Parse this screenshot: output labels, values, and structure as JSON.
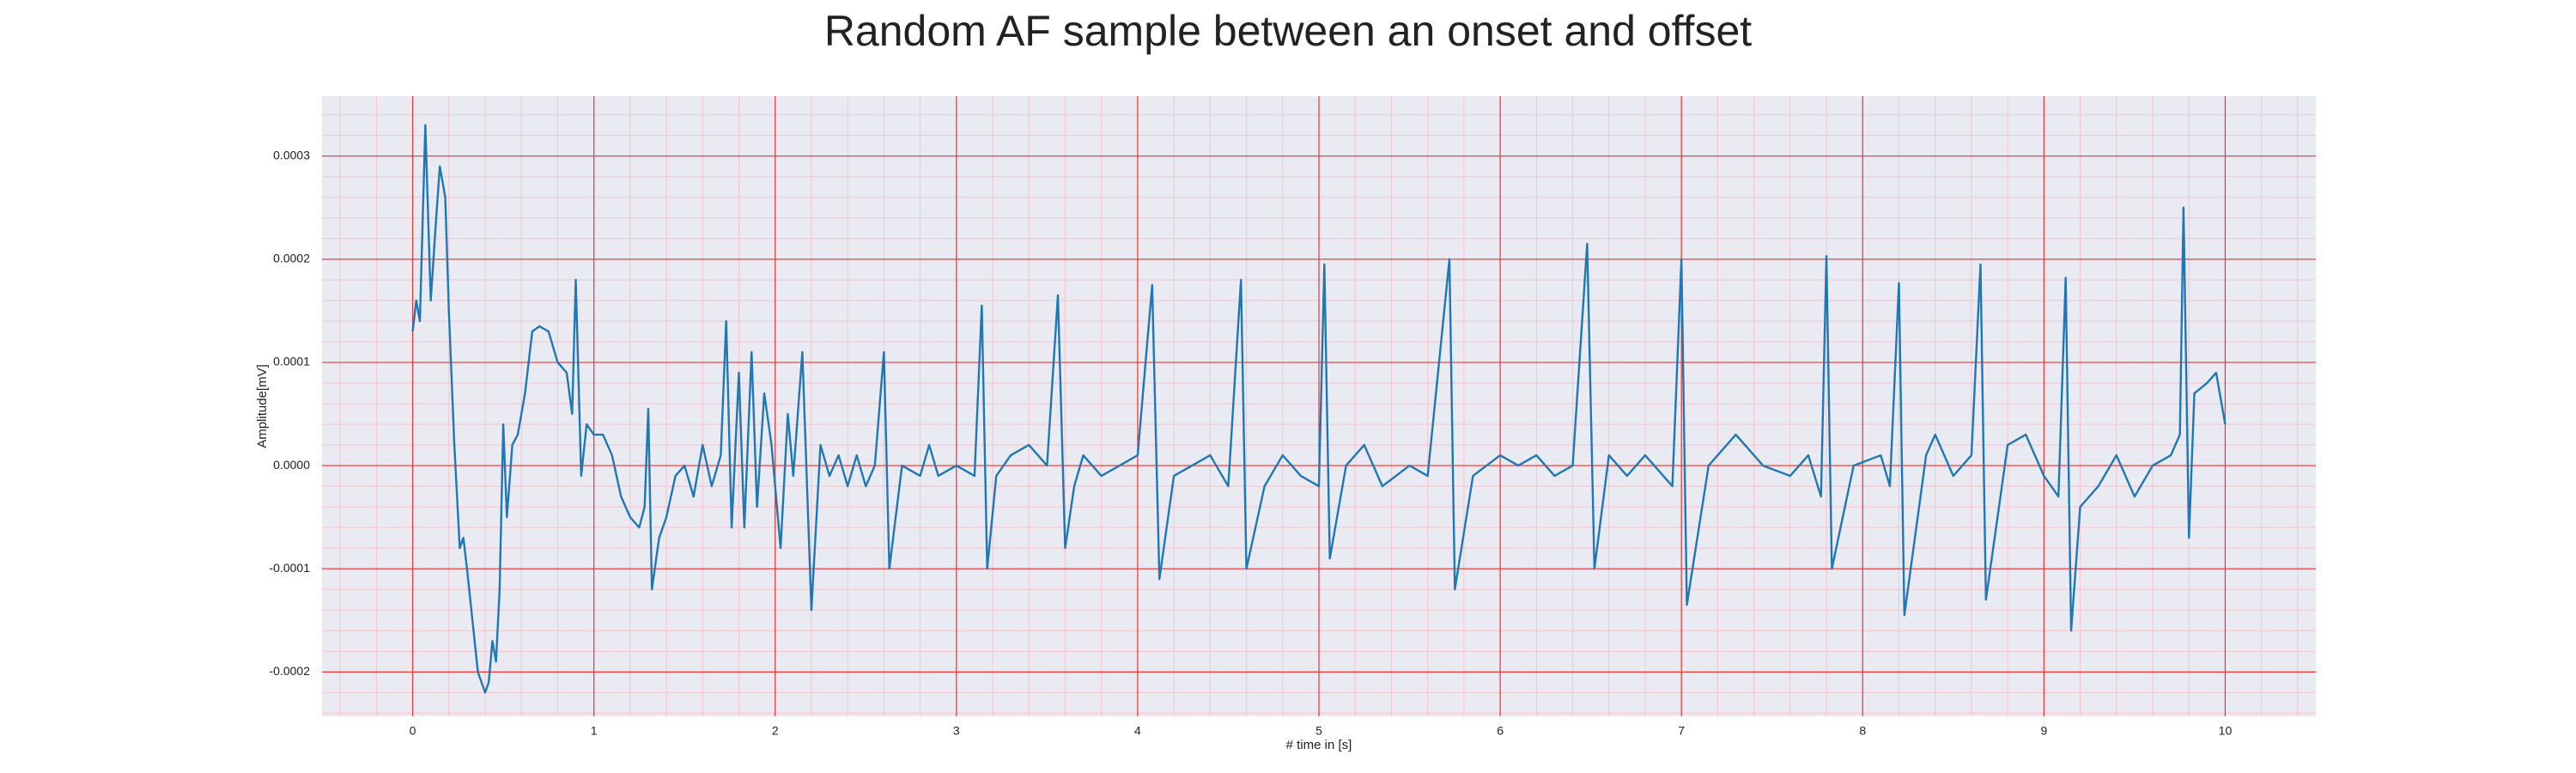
{
  "chart_data": {
    "type": "line",
    "title": "Random AF sample between an onset and offset",
    "xlabel": "# time in [s]",
    "ylabel": "Amplitude[mV]",
    "color": "#1f77b4",
    "background": "#eaeaf2",
    "grid": true,
    "grid_color": "#ee3333",
    "minor_grid": true,
    "minor_grid_color": "#f6c4cc",
    "xlim": [
      -0.5,
      10.5
    ],
    "ylim": [
      -0.000243,
      0.000358
    ],
    "xticks": [
      0,
      1,
      2,
      3,
      4,
      5,
      6,
      7,
      8,
      9,
      10
    ],
    "yticks": [
      {
        "value": -0.0002,
        "label": "-0.0002"
      },
      {
        "value": -0.0001,
        "label": "-0.0001"
      },
      {
        "value": 0,
        "label": "0.0000"
      },
      {
        "value": 0.0001,
        "label": "0.0001"
      },
      {
        "value": 0.0002,
        "label": "0.0002"
      },
      {
        "value": 0.0003,
        "label": "0.0003"
      }
    ],
    "x": [
      0,
      0.02,
      0.04,
      0.07,
      0.1,
      0.13,
      0.15,
      0.18,
      0.2,
      0.23,
      0.26,
      0.28,
      0.3,
      0.33,
      0.36,
      0.4,
      0.42,
      0.44,
      0.46,
      0.48,
      0.5,
      0.52,
      0.55,
      0.58,
      0.62,
      0.66,
      0.7,
      0.75,
      0.8,
      0.85,
      0.88,
      0.9,
      0.93,
      0.96,
      1.0,
      1.05,
      1.1,
      1.15,
      1.2,
      1.25,
      1.28,
      1.3,
      1.32,
      1.36,
      1.4,
      1.45,
      1.5,
      1.55,
      1.6,
      1.65,
      1.7,
      1.73,
      1.76,
      1.8,
      1.83,
      1.87,
      1.9,
      1.94,
      1.98,
      2.03,
      2.07,
      2.1,
      2.15,
      2.2,
      2.25,
      2.3,
      2.35,
      2.4,
      2.45,
      2.5,
      2.55,
      2.6,
      2.63,
      2.7,
      2.8,
      2.85,
      2.9,
      3.0,
      3.1,
      3.14,
      3.17,
      3.22,
      3.3,
      3.4,
      3.5,
      3.56,
      3.6,
      3.65,
      3.7,
      3.8,
      3.9,
      4.0,
      4.08,
      4.12,
      4.2,
      4.3,
      4.4,
      4.5,
      4.57,
      4.6,
      4.7,
      4.8,
      4.9,
      5.0,
      5.03,
      5.06,
      5.15,
      5.25,
      5.35,
      5.5,
      5.6,
      5.72,
      5.75,
      5.85,
      6.0,
      6.1,
      6.2,
      6.3,
      6.4,
      6.48,
      6.52,
      6.6,
      6.7,
      6.8,
      6.95,
      7.0,
      7.03,
      7.15,
      7.3,
      7.45,
      7.6,
      7.7,
      7.77,
      7.8,
      7.83,
      7.95,
      8.1,
      8.15,
      8.2,
      8.23,
      8.35,
      8.4,
      8.5,
      8.6,
      8.65,
      8.68,
      8.8,
      8.9,
      9.0,
      9.08,
      9.12,
      9.15,
      9.2,
      9.3,
      9.4,
      9.5,
      9.6,
      9.7,
      9.75,
      9.77,
      9.8,
      9.83,
      9.9,
      9.95,
      10.0
    ],
    "values": [
      0.00013,
      0.00016,
      0.00014,
      0.00033,
      0.00016,
      0.00024,
      0.00029,
      0.00026,
      0.00015,
      2e-05,
      -8e-05,
      -7e-05,
      -0.0001,
      -0.00015,
      -0.0002,
      -0.00022,
      -0.00021,
      -0.00017,
      -0.00019,
      -0.00012,
      4e-05,
      -5e-05,
      2e-05,
      3e-05,
      7e-05,
      0.00013,
      0.000135,
      0.00013,
      0.0001,
      9e-05,
      5e-05,
      0.00018,
      -1e-05,
      4e-05,
      3e-05,
      3e-05,
      1e-05,
      -3e-05,
      -5e-05,
      -6e-05,
      -4e-05,
      5.5e-05,
      -0.00012,
      -7e-05,
      -5e-05,
      -1e-05,
      0,
      -3e-05,
      2e-05,
      -2e-05,
      1e-05,
      0.00014,
      -6e-05,
      9e-05,
      -6e-05,
      0.00011,
      -4e-05,
      7e-05,
      2e-05,
      -8e-05,
      5e-05,
      -1e-05,
      0.00011,
      -0.00014,
      2e-05,
      -1e-05,
      1e-05,
      -2e-05,
      1e-05,
      -2e-05,
      0,
      0.00011,
      -0.0001,
      0,
      -1e-05,
      2e-05,
      -1e-05,
      0,
      -1e-05,
      0.000155,
      -0.0001,
      -1e-05,
      1e-05,
      2e-05,
      0,
      0.000165,
      -8e-05,
      -2e-05,
      1e-05,
      -1e-05,
      0,
      1e-05,
      0.000175,
      -0.00011,
      -1e-05,
      0,
      1e-05,
      -2e-05,
      0.00018,
      -0.0001,
      -2e-05,
      1e-05,
      -1e-05,
      -2e-05,
      0.000195,
      -9e-05,
      0,
      2e-05,
      -2e-05,
      0,
      -1e-05,
      0.0002,
      -0.00012,
      -1e-05,
      1e-05,
      0,
      1e-05,
      -1e-05,
      0,
      0.000215,
      -0.0001,
      1e-05,
      -1e-05,
      1e-05,
      -2e-05,
      0.0002,
      -0.000135,
      0,
      3e-05,
      0,
      -1e-05,
      1e-05,
      -3e-05,
      0.000203,
      -0.0001,
      0,
      1e-05,
      -2e-05,
      0.000177,
      -0.000145,
      1e-05,
      3e-05,
      -1e-05,
      1e-05,
      0.000195,
      -0.00013,
      2e-05,
      3e-05,
      -1e-05,
      -3e-05,
      0.000182,
      -0.00016,
      -4e-05,
      -2e-05,
      1e-05,
      -3e-05,
      0,
      1e-05,
      3e-05,
      0.00025,
      -7e-05,
      7e-05,
      8e-05,
      9e-05,
      4e-05
    ]
  }
}
